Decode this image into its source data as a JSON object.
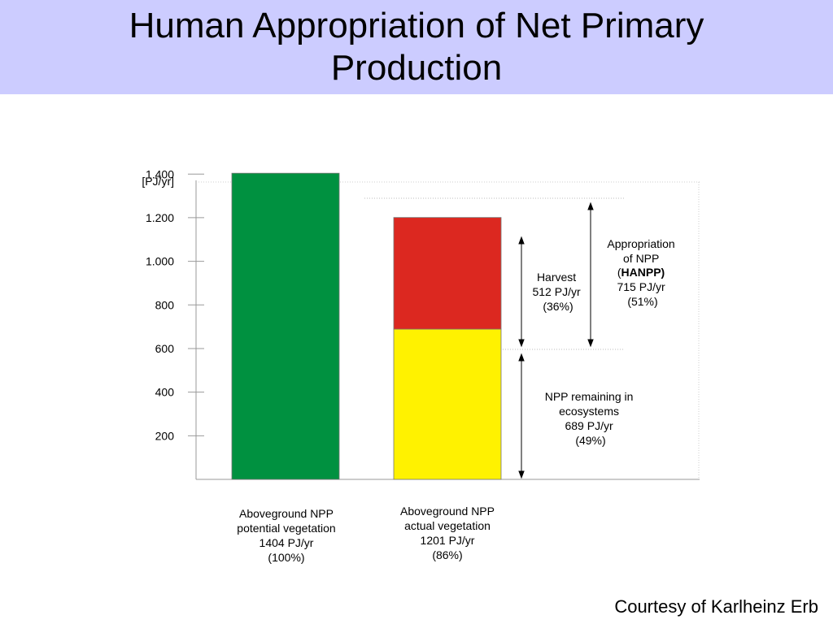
{
  "slide": {
    "title_line1": "Human Appropriation of Net Primary",
    "title_line2": "Production",
    "credit": "Courtesy of Karlheinz Erb"
  },
  "colors": {
    "title_band": "#ccccff",
    "potential": "#009140",
    "harvest": "#dc2820",
    "remaining": "#fff200"
  },
  "chart_data": {
    "type": "bar",
    "stacked": true,
    "ylabel": "[PJ/yr]",
    "ylim": [
      0,
      1550
    ],
    "ticks": [
      {
        "value": 200,
        "label": "200"
      },
      {
        "value": 400,
        "label": "400"
      },
      {
        "value": 600,
        "label": "600"
      },
      {
        "value": 800,
        "label": "800"
      },
      {
        "value": 1000,
        "label": "1.000"
      },
      {
        "value": 1200,
        "label": "1.200"
      },
      {
        "value": 1400,
        "label": "1.400"
      }
    ],
    "bars": [
      {
        "label_lines": [
          "Aboveground NPP",
          "potential vegetation",
          "1404 PJ/yr",
          "(100%)"
        ],
        "segments": [
          {
            "name": "potential vegetation",
            "value": 1404,
            "color": "#009140"
          }
        ]
      },
      {
        "label_lines": [
          "Aboveground NPP",
          "actual vegetation",
          "1201 PJ/yr",
          "(86%)"
        ],
        "segments": [
          {
            "name": "NPP remaining in ecosystems",
            "value": 689,
            "color": "#fff200"
          },
          {
            "name": "Harvest",
            "value": 512,
            "color": "#dc2820"
          }
        ]
      }
    ],
    "annotations": {
      "harvest": {
        "lines": [
          "Harvest",
          "512 PJ/yr",
          "(36%)"
        ]
      },
      "remaining": {
        "lines": [
          "NPP remaining  in",
          "ecosystems",
          "689 PJ/yr",
          "(49%)"
        ]
      },
      "hanpp": {
        "line1": "Appropriation",
        "line2": "of NPP",
        "open": "(",
        "bold": "HANPP)",
        "line4": "715 PJ/yr",
        "line5": "(51%)"
      }
    },
    "grid": false,
    "legend": "none"
  }
}
